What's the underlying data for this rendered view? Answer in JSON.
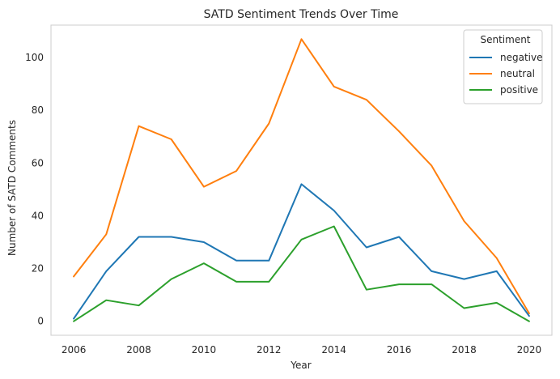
{
  "chart_data": {
    "type": "line",
    "title": "SATD Sentiment Trends Over Time",
    "xlabel": "Year",
    "ylabel": "Number of SATD Comments",
    "x": [
      2006,
      2007,
      2008,
      2009,
      2010,
      2011,
      2012,
      2013,
      2014,
      2015,
      2016,
      2017,
      2018,
      2019,
      2020
    ],
    "xlim": [
      2005.3,
      2020.7
    ],
    "ylim": [
      -5.3,
      112.3
    ],
    "xticks": [
      2006,
      2008,
      2010,
      2012,
      2014,
      2016,
      2018,
      2020
    ],
    "yticks": [
      0,
      20,
      40,
      60,
      80,
      100
    ],
    "grid": false,
    "legend": {
      "title": "Sentiment",
      "position": "top-right"
    },
    "series": [
      {
        "name": "negative",
        "color": "#1f77b4",
        "values": [
          1,
          19,
          32,
          32,
          30,
          23,
          23,
          52,
          42,
          28,
          32,
          19,
          16,
          19,
          2
        ]
      },
      {
        "name": "neutral",
        "color": "#ff7f0e",
        "values": [
          17,
          33,
          74,
          69,
          51,
          57,
          75,
          107,
          89,
          84,
          72,
          59,
          38,
          24,
          3
        ]
      },
      {
        "name": "positive",
        "color": "#2ca02c",
        "values": [
          0,
          8,
          6,
          16,
          22,
          15,
          15,
          31,
          36,
          12,
          14,
          14,
          5,
          7,
          0
        ]
      }
    ]
  }
}
